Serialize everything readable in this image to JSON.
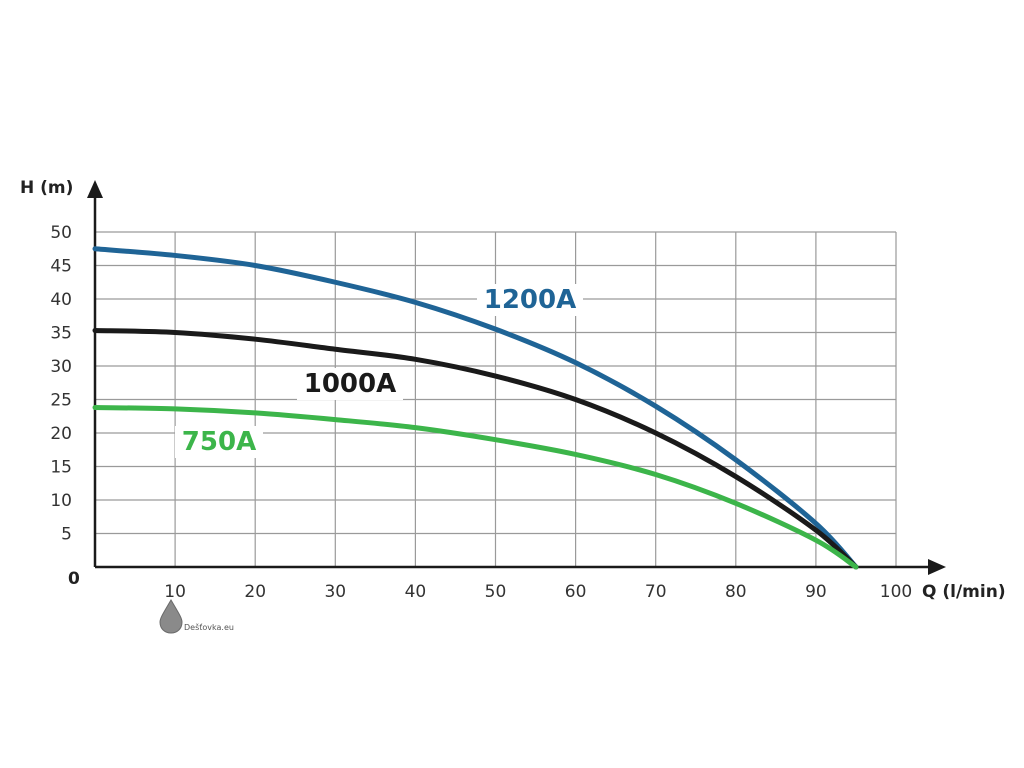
{
  "chart_data": {
    "type": "line",
    "xlabel": "Q (l/min)",
    "ylabel": "H (m)",
    "xlim": [
      0,
      100
    ],
    "ylim": [
      0,
      50
    ],
    "xticks": [
      10,
      20,
      30,
      40,
      50,
      60,
      70,
      80,
      90,
      100
    ],
    "yticks": [
      5,
      10,
      15,
      20,
      25,
      30,
      35,
      40,
      45,
      50
    ],
    "origin_label": "0",
    "grid": true,
    "series": [
      {
        "name": "1200A",
        "color": "#1f6496",
        "x": [
          0,
          10,
          20,
          30,
          40,
          50,
          60,
          70,
          80,
          90,
          95
        ],
        "y": [
          47.5,
          46.5,
          45,
          42.5,
          39.5,
          35.5,
          30.5,
          24,
          16,
          6.5,
          0
        ]
      },
      {
        "name": "1000A",
        "color": "#1a1a1a",
        "x": [
          0,
          10,
          20,
          30,
          40,
          50,
          60,
          70,
          80,
          90,
          95
        ],
        "y": [
          35.3,
          35,
          34,
          32.5,
          31,
          28.5,
          25,
          20,
          13.5,
          5.5,
          0
        ]
      },
      {
        "name": "750A",
        "color": "#3cb54a",
        "x": [
          0,
          10,
          20,
          30,
          40,
          50,
          60,
          70,
          80,
          90,
          95
        ],
        "y": [
          23.8,
          23.6,
          23,
          22,
          20.8,
          19,
          16.8,
          13.8,
          9.5,
          4,
          0
        ]
      }
    ]
  },
  "watermark": {
    "text": "Dešťovka.eu"
  }
}
